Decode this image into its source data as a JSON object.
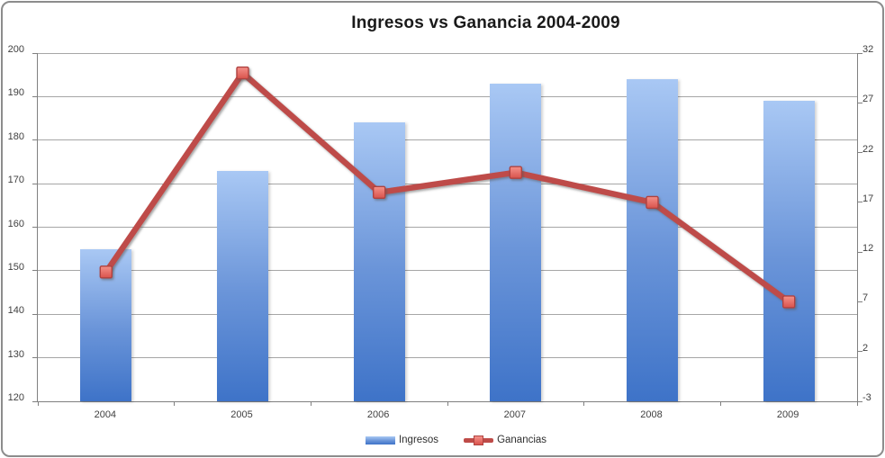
{
  "chart_data": {
    "type": "combo",
    "title": "Ingresos vs Ganancia 2004-2009",
    "categories": [
      "2004",
      "2005",
      "2006",
      "2007",
      "2008",
      "2009"
    ],
    "series": [
      {
        "name": "Ingresos",
        "type": "bar",
        "axis": "left",
        "values": [
          155,
          173,
          184,
          193,
          194,
          189
        ]
      },
      {
        "name": "Ganancias",
        "type": "line",
        "axis": "right",
        "values": [
          10,
          30,
          18,
          20,
          17,
          7
        ]
      }
    ],
    "left_axis": {
      "min": 120,
      "max": 200,
      "step": 10,
      "ticks": [
        200,
        190,
        180,
        170,
        160,
        150,
        140,
        130,
        120
      ]
    },
    "right_axis": {
      "min": -3,
      "max": 32,
      "step": 5,
      "ticks": [
        32,
        27,
        22,
        17,
        12,
        7,
        2,
        -3
      ]
    },
    "legend_position": "bottom",
    "grid": "horizontal",
    "colors": {
      "bar_gradient_top": "#A9C8F4",
      "bar_gradient_mid": "#6B95D9",
      "bar_gradient_bottom": "#3E73C8",
      "line": "#BE4B48",
      "marker_fill_top": "#F5918A",
      "marker_fill_bottom": "#D9534C",
      "marker_border": "#AF4340",
      "gridline": "#A6A6A6",
      "axis_line": "#808080",
      "text": "#3F3F3F",
      "title_text": "#1A1A1A",
      "background": "#FFFFFF",
      "frame_border": "#8C8C8C"
    }
  }
}
